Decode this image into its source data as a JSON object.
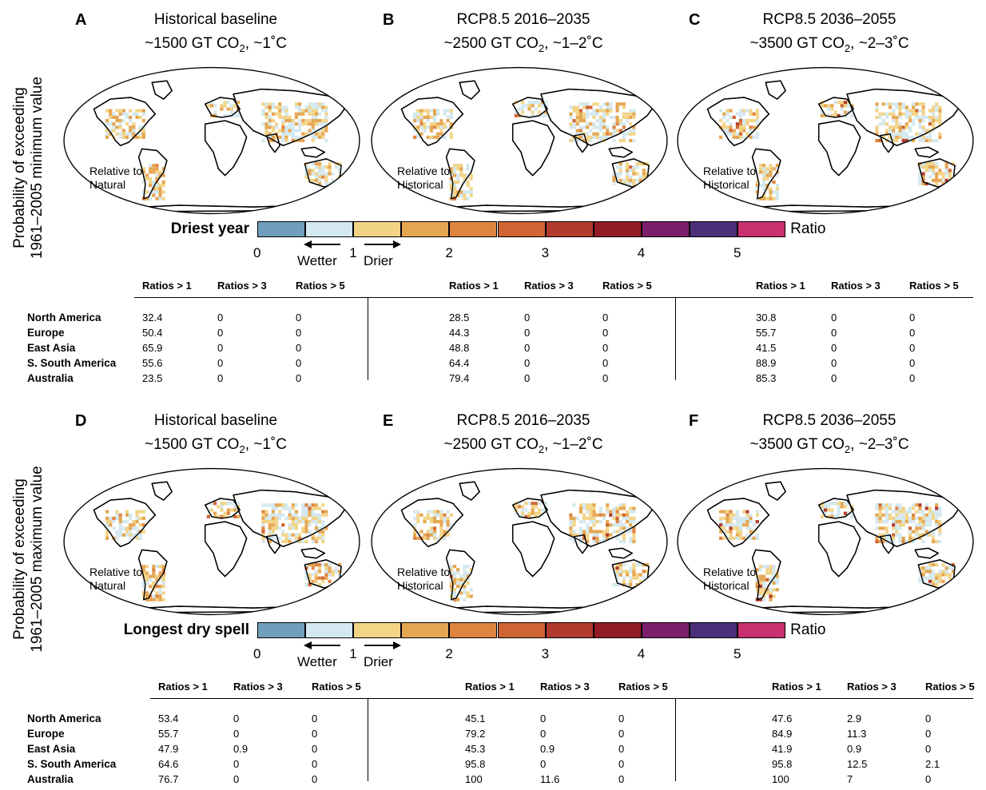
{
  "y_labels": {
    "top": [
      "Probability of exceeding",
      "1961–2005 minimum value"
    ],
    "bottom": [
      "Probability of exceeding",
      "1961–2005 maximum value"
    ]
  },
  "colors": [
    "#6f9fba",
    "#d4e8ef",
    "#f2d487",
    "#e5a652",
    "#de8440",
    "#cf6532",
    "#b23b2d",
    "#921c26",
    "#7b1e6b",
    "#4b2f79",
    "#c93070"
  ],
  "rows": [
    {
      "colorbar_title": "Driest year",
      "panels": [
        {
          "letter": "A",
          "title1": "Historical baseline",
          "title2_pre": "~1500 GT CO",
          "title2_sub": "2",
          "title2_post": ", ~1˚C",
          "label": [
            "Relative to",
            "Natural"
          ]
        },
        {
          "letter": "B",
          "title1": "RCP8.5 2016–2035",
          "title2_pre": "~2500 GT CO",
          "title2_sub": "2",
          "title2_post": ", ~1–2˚C",
          "label": [
            "Relative to",
            "Historical"
          ]
        },
        {
          "letter": "C",
          "title1": "RCP8.5 2036–2055",
          "title2_pre": "~3500 GT CO",
          "title2_sub": "2",
          "title2_post": ", ~2–3˚C",
          "label": [
            "Relative to",
            "Historical"
          ]
        }
      ]
    },
    {
      "colorbar_title": "Longest dry spell",
      "panels": [
        {
          "letter": "D",
          "title1": "Historical baseline",
          "title2_pre": "~1500 GT CO",
          "title2_sub": "2",
          "title2_post": ", ~1˚C",
          "label": [
            "Relative to",
            "Natural"
          ]
        },
        {
          "letter": "E",
          "title1": "RCP8.5 2016–2035",
          "title2_pre": "~2500 GT CO",
          "title2_sub": "2",
          "title2_post": ", ~1–2˚C",
          "label": [
            "Relative to",
            "Historical"
          ]
        },
        {
          "letter": "F",
          "title1": "RCP8.5 2036–2055",
          "title2_pre": "~3500 GT CO",
          "title2_sub": "2",
          "title2_post": ", ~2–3˚C",
          "label": [
            "Relative to",
            "Historical"
          ]
        }
      ]
    }
  ],
  "colorbar": {
    "ratio_label": "Ratio",
    "ticks": [
      "0",
      "1",
      "2",
      "3",
      "4",
      "5"
    ],
    "wetter": "Wetter",
    "drier": "Drier"
  },
  "table_headers": [
    "Ratios > 1",
    "Ratios > 3",
    "Ratios > 5"
  ],
  "regions": [
    "North America",
    "Europe",
    "East Asia",
    "S. South America",
    "Australia"
  ],
  "chart_data": [
    {
      "type": "table",
      "title": "Driest year",
      "columns": [
        "Ratios > 1",
        "Ratios > 3",
        "Ratios > 5"
      ],
      "panels": {
        "A": [
          [
            "32.4",
            "0",
            "0"
          ],
          [
            "50.4",
            "0",
            "0"
          ],
          [
            "65.9",
            "0",
            "0"
          ],
          [
            "55.6",
            "0",
            "0"
          ],
          [
            "23.5",
            "0",
            "0"
          ]
        ],
        "B": [
          [
            "28.5",
            "0",
            "0"
          ],
          [
            "44.3",
            "0",
            "0"
          ],
          [
            "48.8",
            "0",
            "0"
          ],
          [
            "64.4",
            "0",
            "0"
          ],
          [
            "79.4",
            "0",
            "0"
          ]
        ],
        "C": [
          [
            "30.8",
            "0",
            "0"
          ],
          [
            "55.7",
            "0",
            "0"
          ],
          [
            "41.5",
            "0",
            "0"
          ],
          [
            "88.9",
            "0",
            "0"
          ],
          [
            "85.3",
            "0",
            "0"
          ]
        ]
      }
    },
    {
      "type": "table",
      "title": "Longest dry spell",
      "columns": [
        "Ratios > 1",
        "Ratios > 3",
        "Ratios > 5"
      ],
      "panels": {
        "D": [
          [
            "53.4",
            "0",
            "0"
          ],
          [
            "55.7",
            "0",
            "0"
          ],
          [
            "47.9",
            "0.9",
            "0"
          ],
          [
            "64.6",
            "0",
            "0"
          ],
          [
            "76.7",
            "0",
            "0"
          ]
        ],
        "E": [
          [
            "45.1",
            "0",
            "0"
          ],
          [
            "79.2",
            "0",
            "0"
          ],
          [
            "45.3",
            "0.9",
            "0"
          ],
          [
            "95.8",
            "0",
            "0"
          ],
          [
            "100",
            "11.6",
            "0"
          ]
        ],
        "F": [
          [
            "47.6",
            "2.9",
            "0"
          ],
          [
            "84.9",
            "11.3",
            "0"
          ],
          [
            "41.9",
            "0.9",
            "0"
          ],
          [
            "95.8",
            "12.5",
            "2.1"
          ],
          [
            "100",
            "7",
            "0"
          ]
        ]
      }
    }
  ]
}
